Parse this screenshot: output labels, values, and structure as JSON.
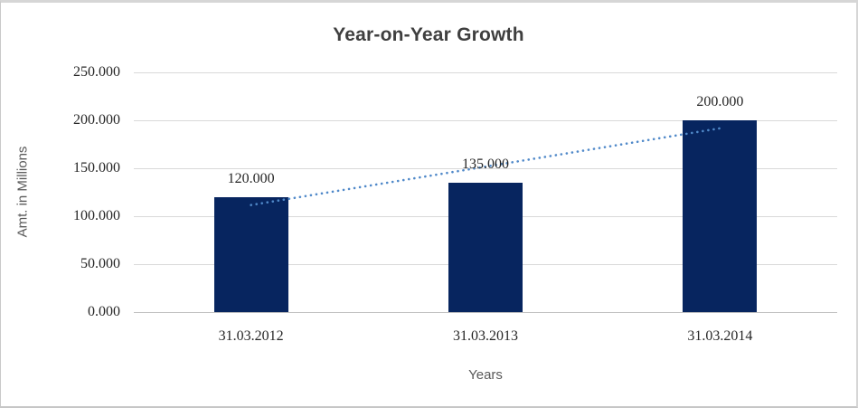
{
  "chart_data": {
    "type": "bar",
    "title": "Year-on-Year Growth",
    "categories": [
      "31.03.2012",
      "31.03.2013",
      "31.03.2014"
    ],
    "values": [
      120,
      135,
      200
    ],
    "data_labels": [
      "120.000",
      "135.000",
      "200.000"
    ],
    "xlabel": "Years",
    "ylabel": "Amt. in Millions",
    "ylim": [
      0,
      250
    ],
    "ytick_step": 50,
    "ytick_labels": [
      "0.000",
      "50.000",
      "100.000",
      "150.000",
      "200.000",
      "250.000"
    ],
    "grid": true,
    "legend": "none",
    "bar_color": "#07255f",
    "gridline_color": "#d9d9d9",
    "trendline": {
      "type": "linear",
      "style": "dotted",
      "color": "#5089c9"
    }
  }
}
